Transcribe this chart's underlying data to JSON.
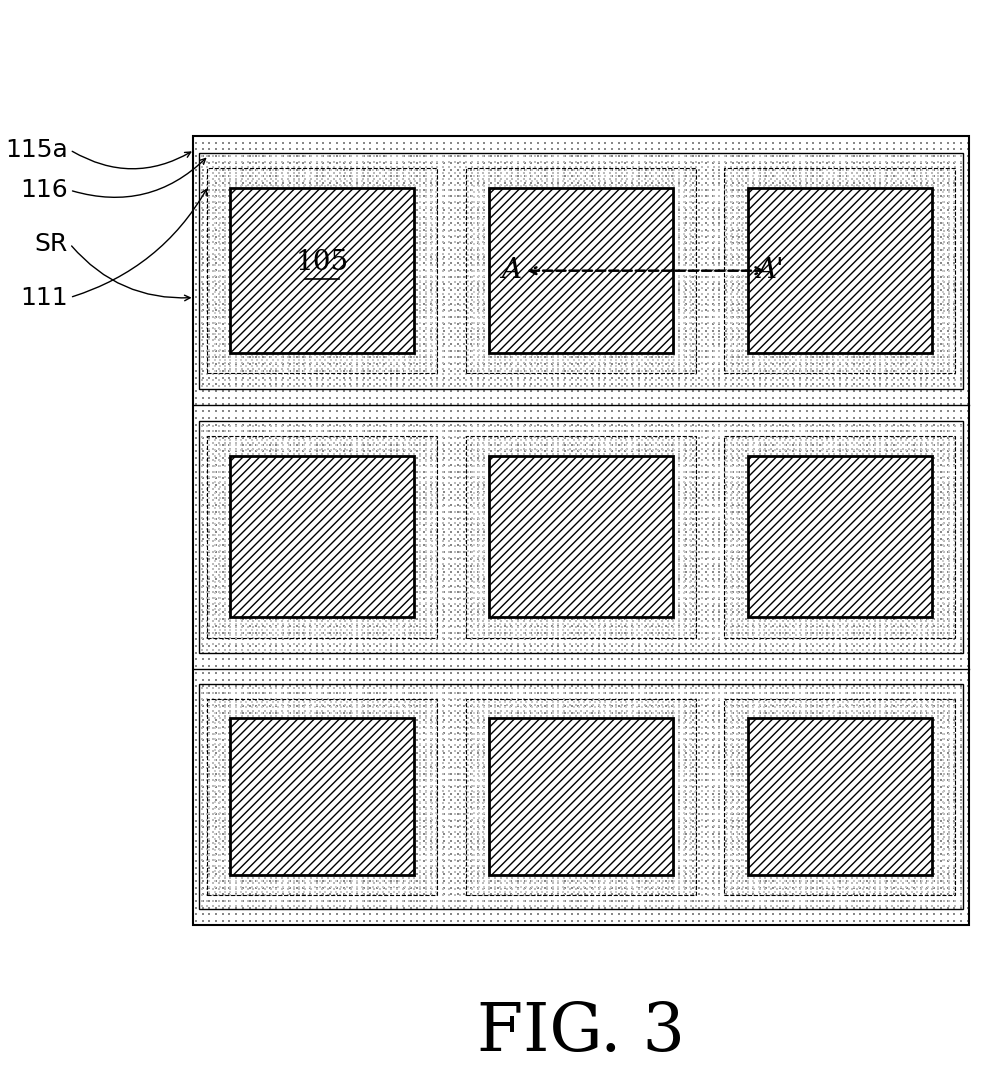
{
  "fig_width": 9.95,
  "fig_height": 10.86,
  "dpi": 100,
  "title": "FIG. 3",
  "title_fontsize": 48,
  "background_color": "#ffffff",
  "num_rows": 3,
  "num_cols": 3,
  "label_fontsize": 18,
  "labels": [
    "115a",
    "116",
    "SR",
    "111"
  ],
  "annotation_105": "105",
  "annotation_A": "A",
  "annotation_Ap": "A'"
}
